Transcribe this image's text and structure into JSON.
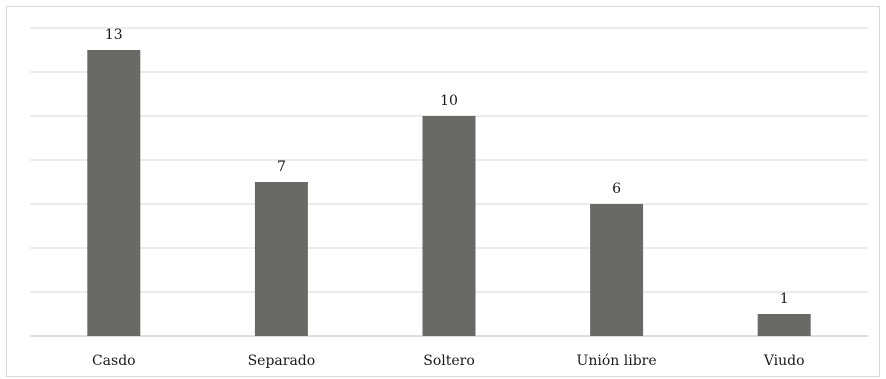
{
  "chart_data": {
    "type": "bar",
    "categories": [
      "Casdo",
      "Separado",
      "Soltero",
      "Unión libre",
      "Viudo"
    ],
    "values": [
      13,
      7,
      10,
      6,
      1
    ],
    "title": "",
    "xlabel": "",
    "ylabel": "",
    "ylim": [
      0,
      14
    ],
    "grid": true,
    "legend": "none",
    "colors": {
      "bar": "#6b6966",
      "grid": "#d9d9d9"
    }
  }
}
